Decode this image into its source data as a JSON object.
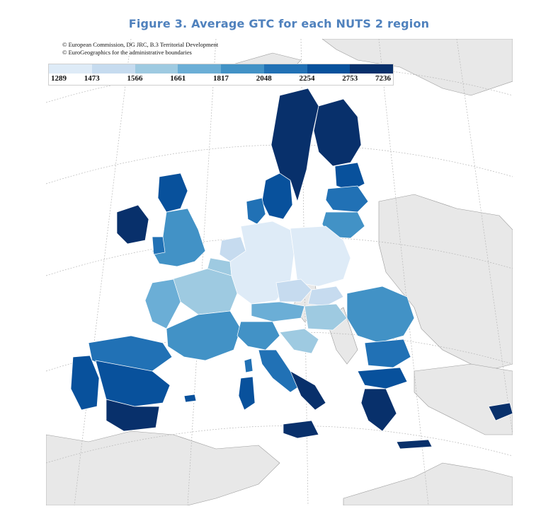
{
  "figure": {
    "title": "Figure 3. Average GTC for each NUTS 2 region"
  },
  "credits": {
    "line1": "© European Commission, DG JRC, B.3 Territorial Development",
    "line2": "© EuroGeographics for the administrative boundaries"
  },
  "legend": {
    "breaks": [
      "1289",
      "1473",
      "1566",
      "1661",
      "1817",
      "2048",
      "2254",
      "2753",
      "7236"
    ],
    "colors": [
      "#deebf7",
      "#c6dbef",
      "#9ecae1",
      "#6baed6",
      "#4292c6",
      "#2171b5",
      "#08519c",
      "#08306b"
    ]
  },
  "map": {
    "sea_color": "#ffffff",
    "non_eu_land_color": "#e8e8e8",
    "region_classes": [
      {
        "area": "Iceland-free Nordic north (Sweden/Finland north)",
        "class": 8
      },
      {
        "area": "Ireland",
        "class": 8
      },
      {
        "area": "Scotland",
        "class": 7
      },
      {
        "area": "England & Wales",
        "class": 6
      },
      {
        "area": "Norway south / Denmark",
        "class": 6
      },
      {
        "area": "Baltic states",
        "class": 6
      },
      {
        "area": "Benelux",
        "class": 3
      },
      {
        "area": "Germany",
        "class": 2
      },
      {
        "area": "Poland",
        "class": 2
      },
      {
        "area": "France",
        "class": 4
      },
      {
        "area": "Austria",
        "class": 4
      },
      {
        "area": "Czechia / Slovakia / Hungary",
        "class": 3
      },
      {
        "area": "Romania",
        "class": 5
      },
      {
        "area": "Bulgaria",
        "class": 6
      },
      {
        "area": "Greece",
        "class": 7
      },
      {
        "area": "Italy",
        "class": 5
      },
      {
        "area": "Southern Italy & Sicily",
        "class": 8
      },
      {
        "area": "Spain",
        "class": 7
      },
      {
        "area": "Portugal",
        "class": 7
      },
      {
        "area": "Andalusia",
        "class": 8
      },
      {
        "area": "Cyprus",
        "class": 8
      }
    ]
  }
}
